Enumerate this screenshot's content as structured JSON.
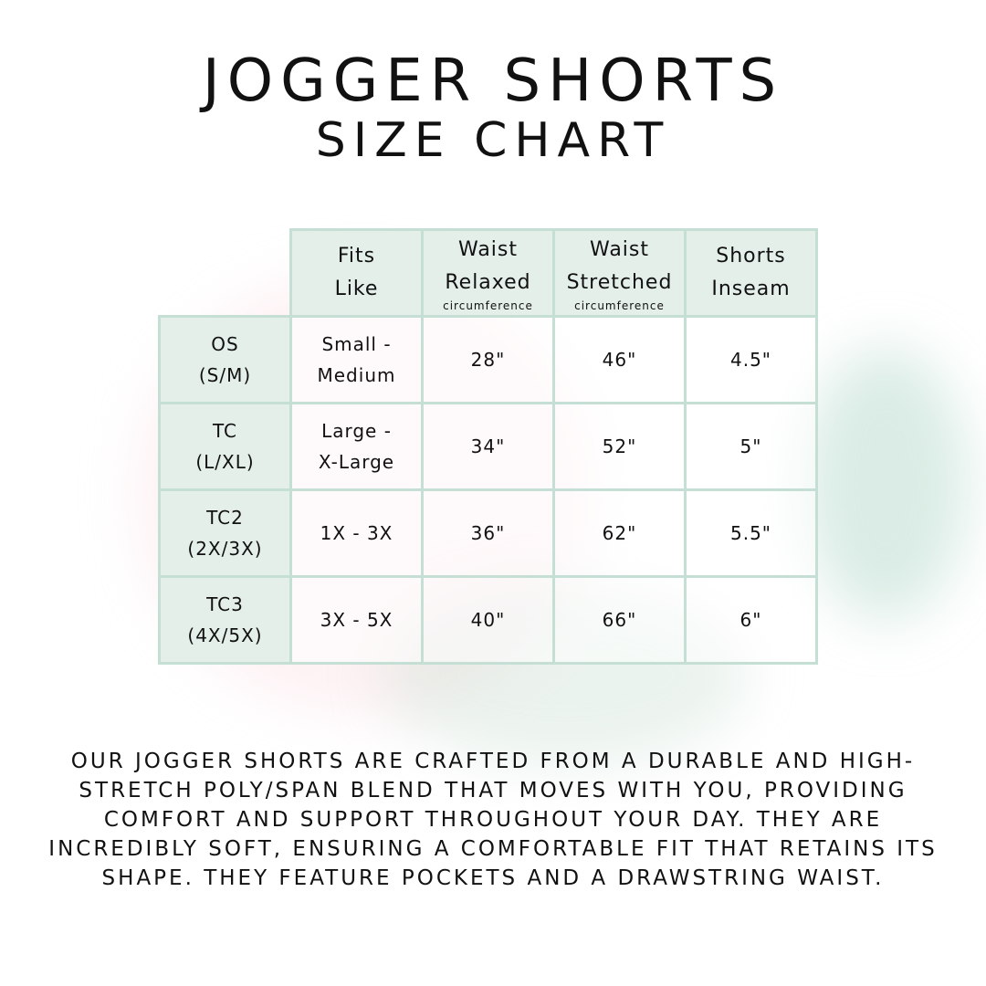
{
  "title_line1": "JOGGER SHORTS",
  "title_line2": "SIZE CHART",
  "table": {
    "headers": [
      {
        "lines": [
          "Fits",
          "Like"
        ],
        "sub": ""
      },
      {
        "lines": [
          "Waist",
          "Relaxed"
        ],
        "sub": "circumference"
      },
      {
        "lines": [
          "Waist",
          "Stretched"
        ],
        "sub": "circumference"
      },
      {
        "lines": [
          "Shorts",
          "Inseam"
        ],
        "sub": ""
      }
    ],
    "rows": [
      {
        "size": [
          "OS",
          "(S/M)"
        ],
        "fits": [
          "Small -",
          "Medium"
        ],
        "waist_relaxed": "28\"",
        "waist_stretched": "46\"",
        "inseam": "4.5\""
      },
      {
        "size": [
          "TC",
          "(L/XL)"
        ],
        "fits": [
          "Large -",
          "X-Large"
        ],
        "waist_relaxed": "34\"",
        "waist_stretched": "52\"",
        "inseam": "5\""
      },
      {
        "size": [
          "TC2",
          "(2X/3X)"
        ],
        "fits": [
          "1X - 3X",
          ""
        ],
        "waist_relaxed": "36\"",
        "waist_stretched": "62\"",
        "inseam": "5.5\""
      },
      {
        "size": [
          "TC3",
          "(4X/5X)"
        ],
        "fits": [
          "3X - 5X",
          ""
        ],
        "waist_relaxed": "40\"",
        "waist_stretched": "66\"",
        "inseam": "6\""
      }
    ]
  },
  "description": "Our jogger shorts are crafted from a durable and high-stretch poly/span blend that moves with you, providing comfort and support throughout your day. They are incredibly soft, ensuring a comfortable fit that retains its shape. They feature pockets and a drawstring waist.",
  "colors": {
    "border": "#c5dfd4",
    "header_fill": "#e4efe9",
    "text": "#111111"
  }
}
